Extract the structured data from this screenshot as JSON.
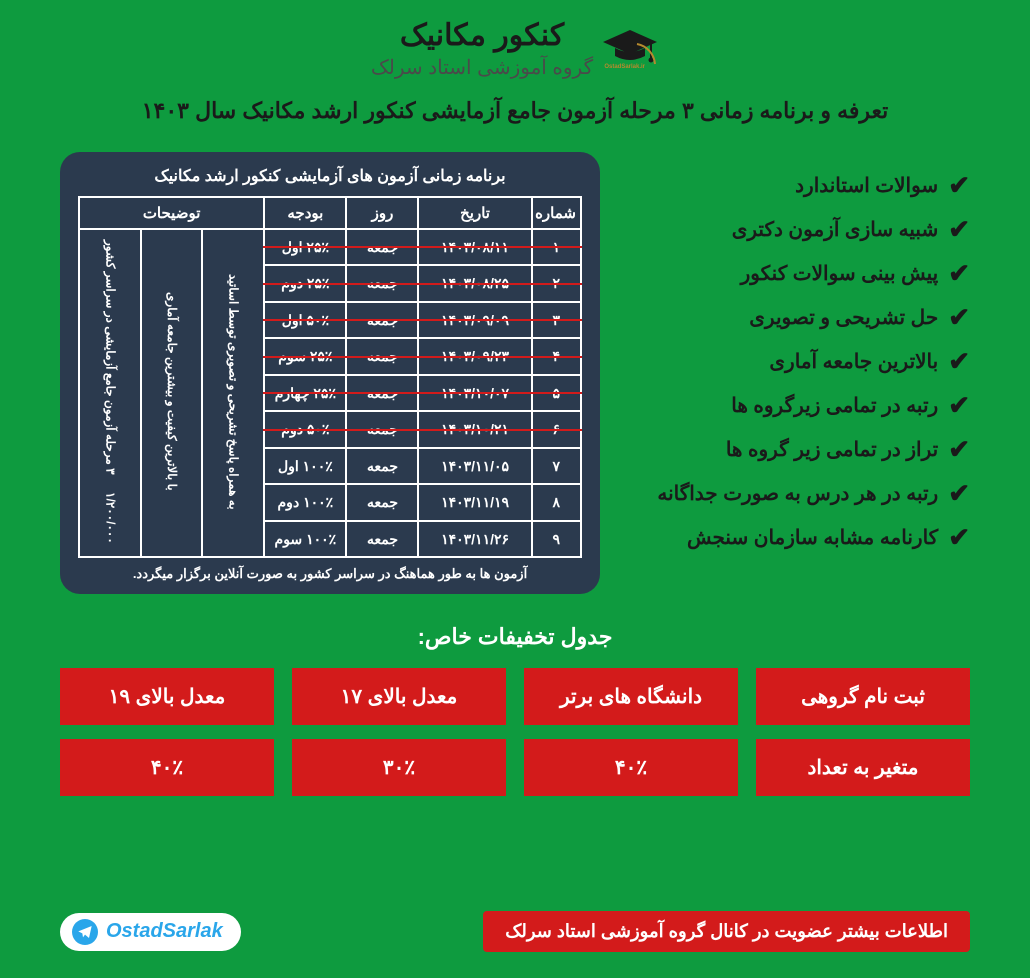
{
  "brand": {
    "title": "کنکور مکانیک",
    "subtitle": "گروه آموزشی استاد سرلک",
    "badge": "OstadSarlak.ir"
  },
  "headline": "تعرفه و برنامه زمانی ۳ مرحله آزمون جامع آزمایشی کنکور ارشد مکانیک سال ۱۴۰۳",
  "features": [
    "سوالات استاندارد",
    "شبیه سازی آزمون دکتری",
    "پیش بینی سوالات کنکور",
    "حل تشریحی و تصویری",
    "بالاترین جامعه آماری",
    "رتبه در تمامی زیرگروه ها",
    "تراز در تمامی زیر گروه ها",
    "رتبه در هر درس به صورت جداگانه",
    "کارنامه مشابه سازمان سنجش"
  ],
  "schedule": {
    "box_title": "برنامه زمانی آزمون های آزمایشی کنکور ارشد مکانیک",
    "columns": {
      "num": "شماره",
      "date": "تاریخ",
      "day": "روز",
      "budget": "بودجه",
      "notes": "توضیحات"
    },
    "merged_notes": {
      "col1": "به همراه پاسخ تشریحی و تصویری توسط اساتید",
      "col2": "با بالاترین کیفیت و بیشترین جامعه آماری",
      "col3_top": "۳ مرحله آزمون جامع آزمایشی در سراسر کشور",
      "col3_bot": "۱/۲۰۰/۰۰۰"
    },
    "rows": [
      {
        "num": "۱",
        "date": "۱۴۰۳/۰۸/۱۱",
        "day": "جمعه",
        "budget": "۲۵٪ اول",
        "struck": true
      },
      {
        "num": "۲",
        "date": "۱۴۰۳/۰۸/۲۵",
        "day": "جمعه",
        "budget": "۲۵٪ دوم",
        "struck": true
      },
      {
        "num": "۳",
        "date": "۱۴۰۳/۰۹/۰۹",
        "day": "جمعه",
        "budget": "۵۰٪ اول",
        "struck": true
      },
      {
        "num": "۴",
        "date": "۱۴۰۳/۰۹/۲۳",
        "day": "جمعه",
        "budget": "۲۵٪ سوم",
        "struck": true
      },
      {
        "num": "۵",
        "date": "۱۴۰۳/۱۰/۰۷",
        "day": "جمعه",
        "budget": "۲۵٪ چهارم",
        "struck": true
      },
      {
        "num": "۶",
        "date": "۱۴۰۳/۱۰/۲۱",
        "day": "جمعه",
        "budget": "۵۰٪ دوم",
        "struck": true
      },
      {
        "num": "۷",
        "date": "۱۴۰۳/۱۱/۰۵",
        "day": "جمعه",
        "budget": "۱۰۰٪ اول",
        "struck": false
      },
      {
        "num": "۸",
        "date": "۱۴۰۳/۱۱/۱۹",
        "day": "جمعه",
        "budget": "۱۰۰٪ دوم",
        "struck": false
      },
      {
        "num": "۹",
        "date": "۱۴۰۳/۱۱/۲۶",
        "day": "جمعه",
        "budget": "۱۰۰٪ سوم",
        "struck": false
      }
    ],
    "footer": "آزمون ها به طور هماهنگ در سراسر کشور به صورت آنلاین برگزار میگردد."
  },
  "discounts": {
    "title": "جدول تخفیفات خاص:",
    "headers": [
      "ثبت نام گروهی",
      "دانشگاه های برتر",
      "معدل بالای ۱۷",
      "معدل بالای ۱۹"
    ],
    "values": [
      "متغیر به تعداد",
      "۴۰٪",
      "۳۰٪",
      "۴۰٪"
    ]
  },
  "footer": {
    "info": "اطلاعات بیشتر عضویت در کانال گروه آموزشی استاد سرلک",
    "telegram": "OstadSarlak"
  },
  "colors": {
    "page_bg": "#0e9b3f",
    "box_bg": "#2b3a4e",
    "red": "#d31b1b",
    "white": "#ffffff",
    "tg_blue": "#2aa6ea"
  }
}
